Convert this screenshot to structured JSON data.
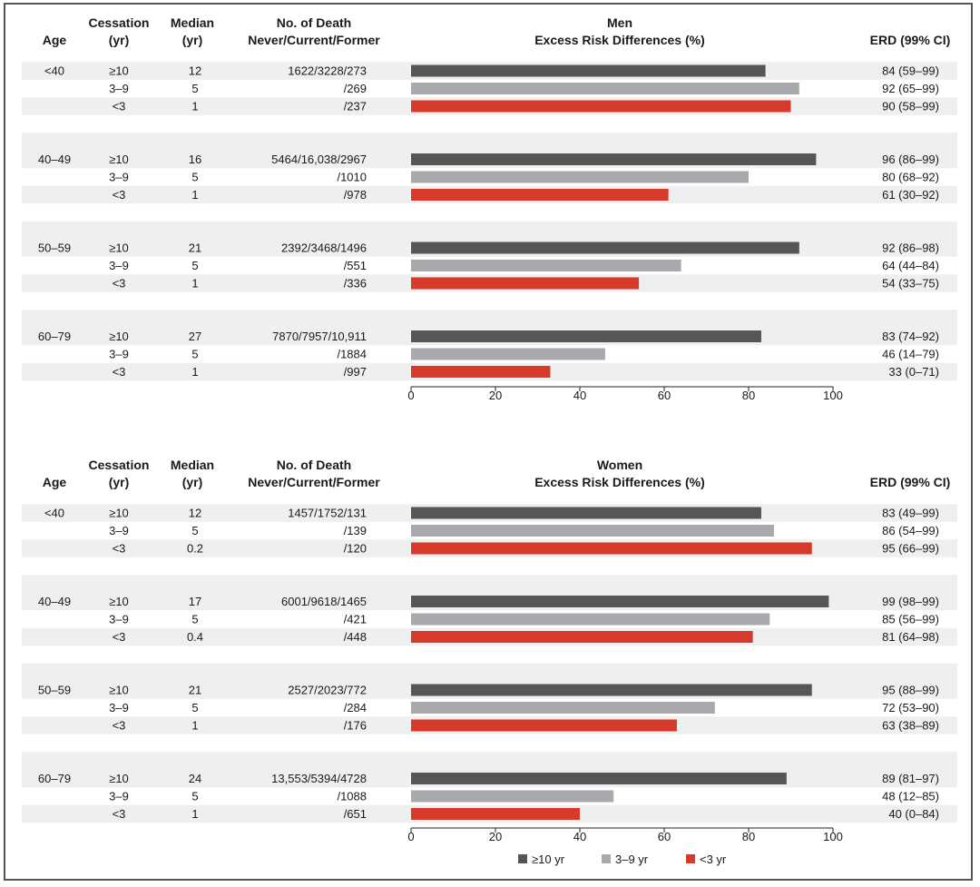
{
  "colors": {
    "ge10": "#555658",
    "y3to9": "#a7a9ac",
    "lt3": "#d63a2a",
    "stripe": "#efefef"
  },
  "headers": {
    "age": "Age",
    "cessation": [
      "Cessation",
      "(yr)"
    ],
    "median": [
      "Median",
      "(yr)"
    ],
    "deaths": [
      "No. of Death",
      "Never/Current/Former"
    ],
    "erd": "ERD (99% CI)"
  },
  "legend": [
    {
      "key": "ge10",
      "label": "≥10 yr"
    },
    {
      "key": "y3to9",
      "label": "3–9 yr"
    },
    {
      "key": "lt3",
      "label": "<3 yr"
    }
  ],
  "chart_data": [
    {
      "type": "bar",
      "orientation": "horizontal",
      "title": "Men",
      "xlabel": "Excess Risk Differences (%)",
      "xlim": [
        0,
        100
      ],
      "xticks": [
        0,
        20,
        40,
        60,
        80,
        100
      ],
      "groups": [
        {
          "age": "<40",
          "rows": [
            {
              "cessation": "≥10",
              "median": "12",
              "deaths": "1622/3228/273",
              "value": 84,
              "erd": "84 (59–99)",
              "key": "ge10"
            },
            {
              "cessation": "3–9",
              "median": "5",
              "deaths": "/269",
              "value": 92,
              "erd": "92 (65–99)",
              "key": "y3to9"
            },
            {
              "cessation": "<3",
              "median": "1",
              "deaths": "/237",
              "value": 90,
              "erd": "90 (58–99)",
              "key": "lt3"
            }
          ]
        },
        {
          "age": "40–49",
          "rows": [
            {
              "cessation": "≥10",
              "median": "16",
              "deaths": "5464/16,038/2967",
              "value": 96,
              "erd": "96 (86–99)",
              "key": "ge10"
            },
            {
              "cessation": "3–9",
              "median": "5",
              "deaths": "/1010",
              "value": 80,
              "erd": "80 (68–92)",
              "key": "y3to9"
            },
            {
              "cessation": "<3",
              "median": "1",
              "deaths": "/978",
              "value": 61,
              "erd": "61 (30–92)",
              "key": "lt3"
            }
          ]
        },
        {
          "age": "50–59",
          "rows": [
            {
              "cessation": "≥10",
              "median": "21",
              "deaths": "2392/3468/1496",
              "value": 92,
              "erd": "92 (86–98)",
              "key": "ge10"
            },
            {
              "cessation": "3–9",
              "median": "5",
              "deaths": "/551",
              "value": 64,
              "erd": "64 (44–84)",
              "key": "y3to9"
            },
            {
              "cessation": "<3",
              "median": "1",
              "deaths": "/336",
              "value": 54,
              "erd": "54 (33–75)",
              "key": "lt3"
            }
          ]
        },
        {
          "age": "60–79",
          "rows": [
            {
              "cessation": "≥10",
              "median": "27",
              "deaths": "7870/7957/10,911",
              "value": 83,
              "erd": "83 (74–92)",
              "key": "ge10"
            },
            {
              "cessation": "3–9",
              "median": "5",
              "deaths": "/1884",
              "value": 46,
              "erd": "46 (14–79)",
              "key": "y3to9"
            },
            {
              "cessation": "<3",
              "median": "1",
              "deaths": "/997",
              "value": 33,
              "erd": "33 (0–71)",
              "key": "lt3"
            }
          ]
        }
      ]
    },
    {
      "type": "bar",
      "orientation": "horizontal",
      "title": "Women",
      "xlabel": "Excess Risk Differences (%)",
      "xlim": [
        0,
        100
      ],
      "xticks": [
        0,
        20,
        40,
        60,
        80,
        100
      ],
      "groups": [
        {
          "age": "<40",
          "rows": [
            {
              "cessation": "≥10",
              "median": "12",
              "deaths": "1457/1752/131",
              "value": 83,
              "erd": "83 (49–99)",
              "key": "ge10"
            },
            {
              "cessation": "3–9",
              "median": "5",
              "deaths": "/139",
              "value": 86,
              "erd": "86 (54–99)",
              "key": "y3to9"
            },
            {
              "cessation": "<3",
              "median": "0.2",
              "deaths": "/120",
              "value": 95,
              "erd": "95 (66–99)",
              "key": "lt3"
            }
          ]
        },
        {
          "age": "40–49",
          "rows": [
            {
              "cessation": "≥10",
              "median": "17",
              "deaths": "6001/9618/1465",
              "value": 99,
              "erd": "99 (98–99)",
              "key": "ge10"
            },
            {
              "cessation": "3–9",
              "median": "5",
              "deaths": "/421",
              "value": 85,
              "erd": "85 (56–99)",
              "key": "y3to9"
            },
            {
              "cessation": "<3",
              "median": "0.4",
              "deaths": "/448",
              "value": 81,
              "erd": "81 (64–98)",
              "key": "lt3"
            }
          ]
        },
        {
          "age": "50–59",
          "rows": [
            {
              "cessation": "≥10",
              "median": "21",
              "deaths": "2527/2023/772",
              "value": 95,
              "erd": "95 (88–99)",
              "key": "ge10"
            },
            {
              "cessation": "3–9",
              "median": "5",
              "deaths": "/284",
              "value": 72,
              "erd": "72 (53–90)",
              "key": "y3to9"
            },
            {
              "cessation": "<3",
              "median": "1",
              "deaths": "/176",
              "value": 63,
              "erd": "63 (38–89)",
              "key": "lt3"
            }
          ]
        },
        {
          "age": "60–79",
          "rows": [
            {
              "cessation": "≥10",
              "median": "24",
              "deaths": "13,553/5394/4728",
              "value": 89,
              "erd": "89 (81–97)",
              "key": "ge10"
            },
            {
              "cessation": "3–9",
              "median": "5",
              "deaths": "/1088",
              "value": 48,
              "erd": "48 (12–85)",
              "key": "y3to9"
            },
            {
              "cessation": "<3",
              "median": "1",
              "deaths": "/651",
              "value": 40,
              "erd": "40 (0–84)",
              "key": "lt3"
            }
          ]
        }
      ]
    }
  ]
}
